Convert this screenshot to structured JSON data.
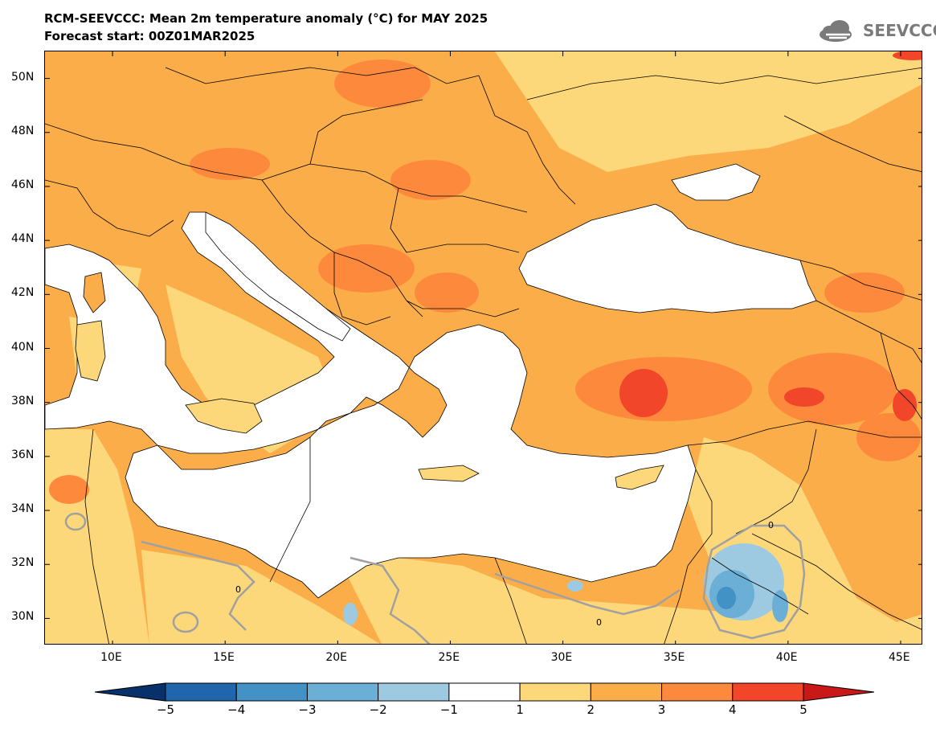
{
  "header": {
    "title": "RCM-SEEVCCC: Mean 2m temperature anomaly (°C) for MAY 2025",
    "subtitle": "Forecast start: 00Z01MAR2025"
  },
  "logo": {
    "text": "SEEVCCC",
    "icon": "cloud-icon"
  },
  "map": {
    "lon_range": [
      7,
      46
    ],
    "lat_range": [
      29,
      51
    ],
    "lat_ticks": [
      {
        "value": 50,
        "label": "50N"
      },
      {
        "value": 48,
        "label": "48N"
      },
      {
        "value": 46,
        "label": "46N"
      },
      {
        "value": 44,
        "label": "44N"
      },
      {
        "value": 42,
        "label": "42N"
      },
      {
        "value": 40,
        "label": "40N"
      },
      {
        "value": 38,
        "label": "38N"
      },
      {
        "value": 36,
        "label": "36N"
      },
      {
        "value": 34,
        "label": "34N"
      },
      {
        "value": 32,
        "label": "32N"
      },
      {
        "value": 30,
        "label": "30N"
      }
    ],
    "lon_ticks": [
      {
        "value": 10,
        "label": "10E"
      },
      {
        "value": 15,
        "label": "15E"
      },
      {
        "value": 20,
        "label": "20E"
      },
      {
        "value": 25,
        "label": "25E"
      },
      {
        "value": 30,
        "label": "30E"
      },
      {
        "value": 35,
        "label": "35E"
      },
      {
        "value": 40,
        "label": "40E"
      },
      {
        "value": 45,
        "label": "45E"
      }
    ],
    "contour_labels": [
      "0",
      "0",
      "0"
    ]
  },
  "colorbar": {
    "levels": [
      "-5",
      "-4",
      "-3",
      "-2",
      "-1",
      "1",
      "2",
      "3",
      "4",
      "5"
    ],
    "colors": [
      "#08306b",
      "#2166ac",
      "#4292c6",
      "#6baed6",
      "#9ecae1",
      "#ffffff",
      "#fdd87a",
      "#fbad4a",
      "#fd8a3c",
      "#f2462a",
      "#c81818"
    ]
  }
}
